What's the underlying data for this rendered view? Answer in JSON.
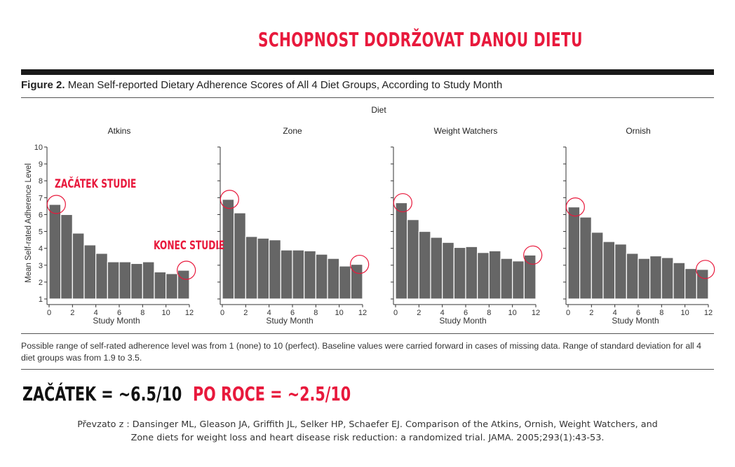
{
  "headline": "SCHOPNOST DODRŽOVAT DANOU DIETU",
  "figure": {
    "label": "Figure 2.",
    "title": "Mean Self-reported Dietary Adherence Scores of All 4 Diet Groups, According to Study Month",
    "caption": "Possible range of self-rated adherence level was from 1 (none) to 10 (perfect). Baseline values were carried forward in cases of missing data. Range of standard deviation for all 4 diet groups was from 1.9 to 3.5."
  },
  "annotations": {
    "start": "ZAČÁTEK STUDIE",
    "end": "KONEC STUDIE"
  },
  "summary": {
    "start": "ZAČÁTEK = ~6.5/10",
    "end": "PO ROCE = ~2.5/10"
  },
  "source": {
    "line1": "Převzato z : Dansinger ML, Gleason JA, Griffith JL, Selker HP, Schaefer EJ. Comparison of the Atkins, Ornish, Weight Watchers, and",
    "line2": "Zone diets for weight loss and heart disease risk reduction: a randomized trial. JAMA. 2005;293(1):43-53."
  },
  "colors": {
    "bar": "#666666",
    "accent": "#e8193c",
    "axis": "#333333"
  },
  "chart_data": {
    "type": "bar",
    "group_title": "Diet",
    "ylabel": "Mean Self-rated Adherence Level",
    "xlabel": "Study Month",
    "ylim": [
      1,
      10
    ],
    "yticks": [
      1,
      2,
      3,
      4,
      5,
      6,
      7,
      8,
      9,
      10
    ],
    "xlim": [
      0,
      12
    ],
    "xticks": [
      0,
      2,
      4,
      6,
      8,
      10,
      12
    ],
    "months": [
      0.5,
      1.5,
      2.5,
      3.5,
      4.5,
      5.5,
      6.5,
      7.5,
      8.5,
      9.5,
      10.5,
      11.5
    ],
    "panels": [
      {
        "name": "Atkins",
        "values": [
          6.6,
          6.0,
          4.9,
          4.2,
          3.7,
          3.2,
          3.2,
          3.1,
          3.2,
          2.6,
          2.5,
          2.7
        ]
      },
      {
        "name": "Zone",
        "values": [
          6.9,
          6.1,
          4.7,
          4.6,
          4.5,
          3.9,
          3.9,
          3.85,
          3.65,
          3.4,
          2.95,
          3.05
        ]
      },
      {
        "name": "Weight Watchers",
        "values": [
          6.7,
          5.7,
          5.0,
          4.65,
          4.35,
          4.05,
          4.1,
          3.75,
          3.85,
          3.4,
          3.25,
          3.6
        ]
      },
      {
        "name": "Ornish",
        "values": [
          6.45,
          5.85,
          4.95,
          4.4,
          4.25,
          3.7,
          3.4,
          3.55,
          3.45,
          3.15,
          2.8,
          2.75
        ]
      }
    ]
  }
}
